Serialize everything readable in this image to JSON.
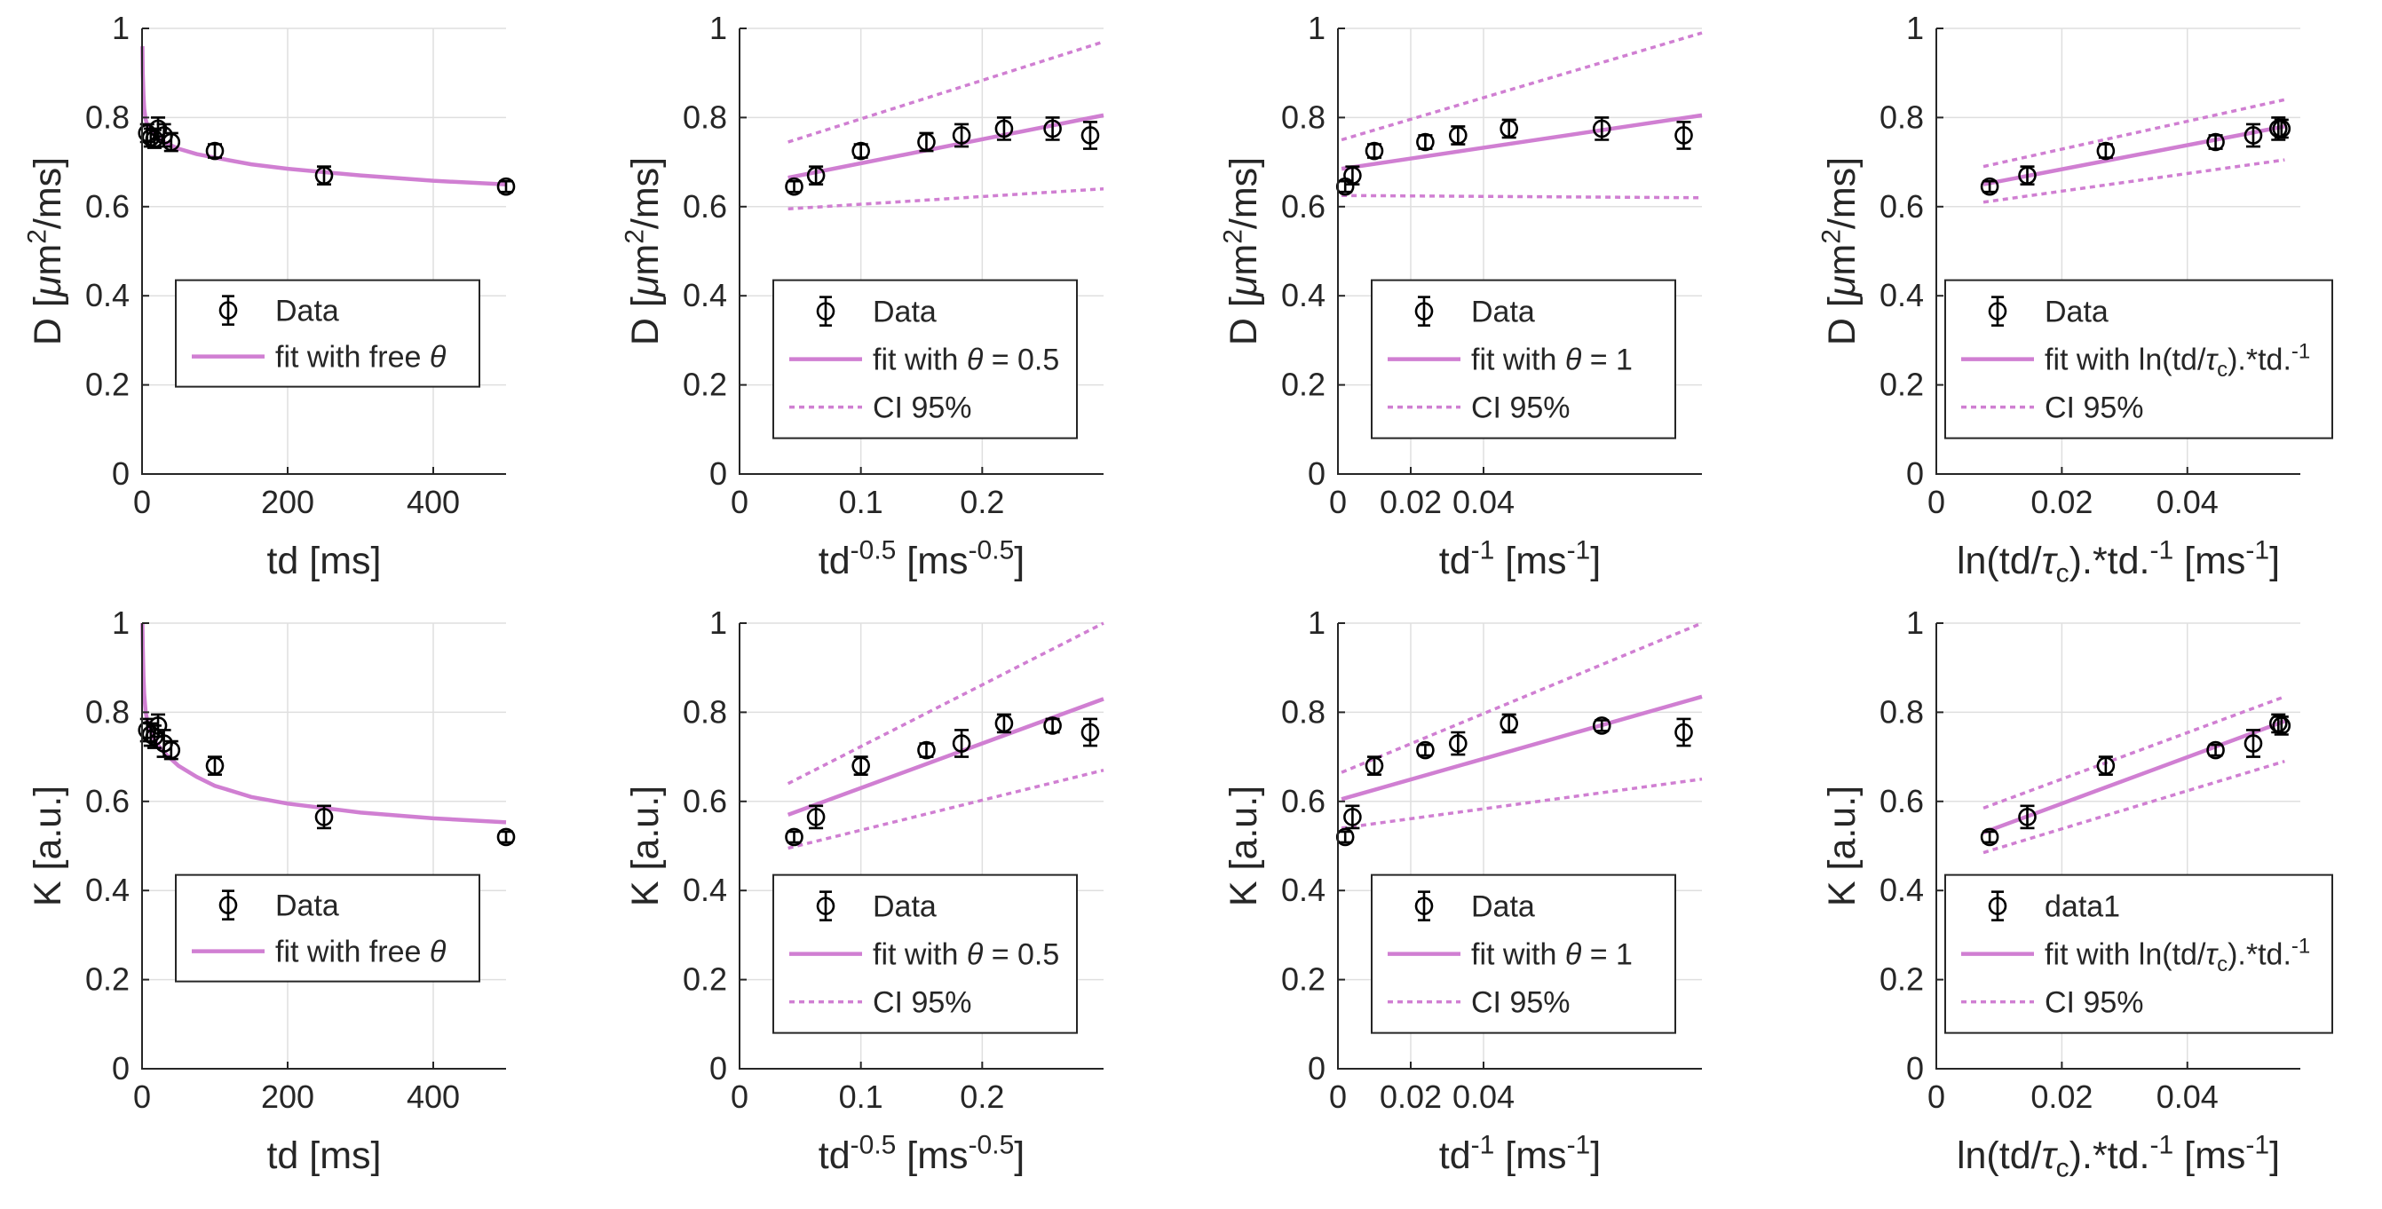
{
  "chart_data": [
    {
      "type": "scatter",
      "xlabel": "td [ms]",
      "ylabel": "D [μm²/ms]",
      "xlim": [
        0,
        500
      ],
      "ylim": [
        0,
        1
      ],
      "xticks": [
        {
          "v": 0,
          "t": "0"
        },
        {
          "v": 200,
          "t": "200"
        },
        {
          "v": 400,
          "t": "400"
        }
      ],
      "yticks": [
        0,
        0.2,
        0.4,
        0.6,
        0.8,
        1
      ],
      "data": {
        "x": [
          7,
          12,
          17,
          22,
          30,
          40,
          100,
          250,
          500
        ],
        "y": [
          0.765,
          0.755,
          0.752,
          0.775,
          0.76,
          0.745,
          0.725,
          0.67,
          0.645
        ],
        "err": [
          0.02,
          0.02,
          0.02,
          0.025,
          0.025,
          0.02,
          0.015,
          0.02,
          0.012
        ]
      },
      "fit": {
        "x": [
          0.5,
          1,
          2,
          3,
          5,
          8,
          12,
          20,
          30,
          50,
          75,
          100,
          150,
          200,
          300,
          400,
          500
        ],
        "y": [
          0.96,
          0.9,
          0.85,
          0.82,
          0.795,
          0.78,
          0.77,
          0.755,
          0.745,
          0.73,
          0.718,
          0.71,
          0.695,
          0.685,
          0.67,
          0.658,
          0.65
        ]
      },
      "ci": null,
      "legend": {
        "entries": [
          "Data",
          "fit with free θ"
        ]
      }
    },
    {
      "type": "scatter",
      "xlabel": "td^-0.5 [ms^-0.5]",
      "ylabel": "D [μm²/ms]",
      "xlim": [
        0,
        0.3
      ],
      "ylim": [
        0,
        1
      ],
      "xticks": [
        {
          "v": 0,
          "t": "0"
        },
        {
          "v": 0.1,
          "t": "0.1"
        },
        {
          "v": 0.2,
          "t": "0.2"
        }
      ],
      "yticks": [
        0,
        0.2,
        0.4,
        0.6,
        0.8,
        1
      ],
      "data": {
        "x": [
          0.045,
          0.063,
          0.1,
          0.154,
          0.183,
          0.218,
          0.258,
          0.289
        ],
        "y": [
          0.645,
          0.67,
          0.725,
          0.745,
          0.76,
          0.775,
          0.775,
          0.76
        ],
        "err": [
          0.012,
          0.02,
          0.015,
          0.02,
          0.025,
          0.025,
          0.025,
          0.03
        ]
      },
      "fit": {
        "x": [
          0.04,
          0.3
        ],
        "y": [
          0.665,
          0.805
        ]
      },
      "ci": {
        "upper": {
          "x": [
            0.04,
            0.3
          ],
          "y": [
            0.745,
            0.97
          ]
        },
        "lower": {
          "x": [
            0.04,
            0.3
          ],
          "y": [
            0.595,
            0.64
          ]
        }
      },
      "legend": {
        "entries": [
          "Data",
          "fit with θ = 0.5",
          "CI 95%"
        ]
      }
    },
    {
      "type": "scatter",
      "xlabel": "td^-1 [ms^-1]",
      "ylabel": "D [μm²/ms]",
      "xlim": [
        0,
        0.1
      ],
      "ylim": [
        0,
        1
      ],
      "xticks": [
        {
          "v": 0,
          "t": "0"
        },
        {
          "v": 0.02,
          "t": "0.02"
        },
        {
          "v": 0.04,
          "t": "0.04"
        }
      ],
      "yticks": [
        0,
        0.2,
        0.4,
        0.6,
        0.8,
        1
      ],
      "data": {
        "x": [
          0.002,
          0.004,
          0.01,
          0.024,
          0.033,
          0.047,
          0.0725,
          0.095
        ],
        "y": [
          0.645,
          0.67,
          0.725,
          0.745,
          0.76,
          0.775,
          0.775,
          0.76
        ],
        "err": [
          0.012,
          0.02,
          0.015,
          0.015,
          0.02,
          0.02,
          0.025,
          0.03
        ]
      },
      "fit": {
        "x": [
          0.001,
          0.1
        ],
        "y": [
          0.685,
          0.805
        ]
      },
      "ci": {
        "upper": {
          "x": [
            0.001,
            0.1
          ],
          "y": [
            0.75,
            0.99
          ]
        },
        "lower": {
          "x": [
            0.001,
            0.1
          ],
          "y": [
            0.625,
            0.62
          ]
        }
      },
      "legend": {
        "entries": [
          "Data",
          "fit with θ = 1",
          "CI 95%"
        ]
      }
    },
    {
      "type": "scatter",
      "xlabel": "ln(td/τc).*td.^-1 [ms^-1]",
      "ylabel": "D [μm²/ms]",
      "xlim": [
        0,
        0.058
      ],
      "ylim": [
        0,
        1
      ],
      "xticks": [
        {
          "v": 0,
          "t": "0"
        },
        {
          "v": 0.02,
          "t": "0.02"
        },
        {
          "v": 0.04,
          "t": "0.04"
        }
      ],
      "yticks": [
        0,
        0.2,
        0.4,
        0.6,
        0.8,
        1
      ],
      "data": {
        "x": [
          0.0085,
          0.0145,
          0.027,
          0.0445,
          0.0505,
          0.0545,
          0.055
        ],
        "y": [
          0.645,
          0.67,
          0.725,
          0.745,
          0.76,
          0.775,
          0.775
        ],
        "err": [
          0.012,
          0.02,
          0.015,
          0.015,
          0.025,
          0.025,
          0.02
        ]
      },
      "fit": {
        "x": [
          0.0075,
          0.0555
        ],
        "y": [
          0.65,
          0.78
        ]
      },
      "ci": {
        "upper": {
          "x": [
            0.0075,
            0.0555
          ],
          "y": [
            0.69,
            0.84
          ]
        },
        "lower": {
          "x": [
            0.0075,
            0.0555
          ],
          "y": [
            0.61,
            0.705
          ]
        }
      },
      "legend": {
        "entries": [
          "Data",
          "fit with ln(td/τc).*td.^-1",
          "CI 95%"
        ]
      }
    },
    {
      "type": "scatter",
      "xlabel": "td [ms]",
      "ylabel": "K [a.u.]",
      "xlim": [
        0,
        500
      ],
      "ylim": [
        0,
        1
      ],
      "xticks": [
        {
          "v": 0,
          "t": "0"
        },
        {
          "v": 200,
          "t": "200"
        },
        {
          "v": 400,
          "t": "400"
        }
      ],
      "yticks": [
        0,
        0.2,
        0.4,
        0.6,
        0.8,
        1
      ],
      "data": {
        "x": [
          7,
          12,
          17,
          22,
          30,
          40,
          100,
          250,
          500
        ],
        "y": [
          0.76,
          0.75,
          0.745,
          0.77,
          0.73,
          0.715,
          0.68,
          0.565,
          0.52
        ],
        "err": [
          0.025,
          0.025,
          0.025,
          0.025,
          0.03,
          0.02,
          0.02,
          0.025,
          0.012
        ]
      },
      "fit": {
        "x": [
          0.5,
          1,
          2,
          3,
          5,
          8,
          12,
          20,
          30,
          50,
          75,
          100,
          150,
          200,
          300,
          400,
          500
        ],
        "y": [
          1.0,
          0.95,
          0.88,
          0.84,
          0.8,
          0.775,
          0.755,
          0.73,
          0.71,
          0.68,
          0.655,
          0.635,
          0.61,
          0.595,
          0.575,
          0.562,
          0.553
        ]
      },
      "ci": null,
      "legend": {
        "entries": [
          "Data",
          "fit with free θ"
        ]
      }
    },
    {
      "type": "scatter",
      "xlabel": "td^-0.5 [ms^-0.5]",
      "ylabel": "K [a.u.]",
      "xlim": [
        0,
        0.3
      ],
      "ylim": [
        0,
        1
      ],
      "xticks": [
        {
          "v": 0,
          "t": "0"
        },
        {
          "v": 0.1,
          "t": "0.1"
        },
        {
          "v": 0.2,
          "t": "0.2"
        }
      ],
      "yticks": [
        0,
        0.2,
        0.4,
        0.6,
        0.8,
        1
      ],
      "data": {
        "x": [
          0.045,
          0.063,
          0.1,
          0.154,
          0.183,
          0.218,
          0.258,
          0.289
        ],
        "y": [
          0.52,
          0.565,
          0.68,
          0.715,
          0.73,
          0.775,
          0.77,
          0.755
        ],
        "err": [
          0.012,
          0.025,
          0.02,
          0.015,
          0.03,
          0.02,
          0.015,
          0.03
        ]
      },
      "fit": {
        "x": [
          0.04,
          0.3
        ],
        "y": [
          0.57,
          0.83
        ]
      },
      "ci": {
        "upper": {
          "x": [
            0.04,
            0.3
          ],
          "y": [
            0.64,
            1.0
          ]
        },
        "lower": {
          "x": [
            0.04,
            0.3
          ],
          "y": [
            0.495,
            0.67
          ]
        }
      },
      "legend": {
        "entries": [
          "Data",
          "fit with θ = 0.5",
          "CI 95%"
        ]
      }
    },
    {
      "type": "scatter",
      "xlabel": "td^-1 [ms^-1]",
      "ylabel": "K [a.u.]",
      "xlim": [
        0,
        0.1
      ],
      "ylim": [
        0,
        1
      ],
      "xticks": [
        {
          "v": 0,
          "t": "0"
        },
        {
          "v": 0.02,
          "t": "0.02"
        },
        {
          "v": 0.04,
          "t": "0.04"
        }
      ],
      "yticks": [
        0,
        0.2,
        0.4,
        0.6,
        0.8,
        1
      ],
      "data": {
        "x": [
          0.002,
          0.004,
          0.01,
          0.024,
          0.033,
          0.047,
          0.0725,
          0.095
        ],
        "y": [
          0.52,
          0.565,
          0.68,
          0.715,
          0.73,
          0.775,
          0.77,
          0.755
        ],
        "err": [
          0.012,
          0.025,
          0.02,
          0.012,
          0.025,
          0.02,
          0.012,
          0.03
        ]
      },
      "fit": {
        "x": [
          0.001,
          0.1
        ],
        "y": [
          0.605,
          0.835
        ]
      },
      "ci": {
        "upper": {
          "x": [
            0.001,
            0.1
          ],
          "y": [
            0.665,
            1.0
          ]
        },
        "lower": {
          "x": [
            0.001,
            0.1
          ],
          "y": [
            0.54,
            0.65
          ]
        }
      },
      "legend": {
        "entries": [
          "Data",
          "fit with θ = 1",
          "CI 95%"
        ]
      }
    },
    {
      "type": "scatter",
      "xlabel": "ln(td/τc).*td.^-1 [ms^-1]",
      "ylabel": "K [a.u.]",
      "xlim": [
        0,
        0.058
      ],
      "ylim": [
        0,
        1
      ],
      "xticks": [
        {
          "v": 0,
          "t": "0"
        },
        {
          "v": 0.02,
          "t": "0.02"
        },
        {
          "v": 0.04,
          "t": "0.04"
        }
      ],
      "yticks": [
        0,
        0.2,
        0.4,
        0.6,
        0.8,
        1
      ],
      "data": {
        "x": [
          0.0085,
          0.0145,
          0.027,
          0.0445,
          0.0505,
          0.0545,
          0.055
        ],
        "y": [
          0.52,
          0.565,
          0.68,
          0.715,
          0.73,
          0.775,
          0.77
        ],
        "err": [
          0.012,
          0.025,
          0.02,
          0.012,
          0.03,
          0.02,
          0.02
        ]
      },
      "fit": {
        "x": [
          0.0075,
          0.0555
        ],
        "y": [
          0.53,
          0.78
        ]
      },
      "ci": {
        "upper": {
          "x": [
            0.0075,
            0.0555
          ],
          "y": [
            0.585,
            0.835
          ]
        },
        "lower": {
          "x": [
            0.0075,
            0.0555
          ],
          "y": [
            0.485,
            0.69
          ]
        }
      },
      "legend": {
        "entries": [
          "data1",
          "fit with ln(td/τc).*td.^-1",
          "CI 95%"
        ]
      }
    }
  ],
  "colors": {
    "fit": "#d07fd2",
    "data": "#000000",
    "grid": "#dfdfdf",
    "axis": "#262626"
  }
}
